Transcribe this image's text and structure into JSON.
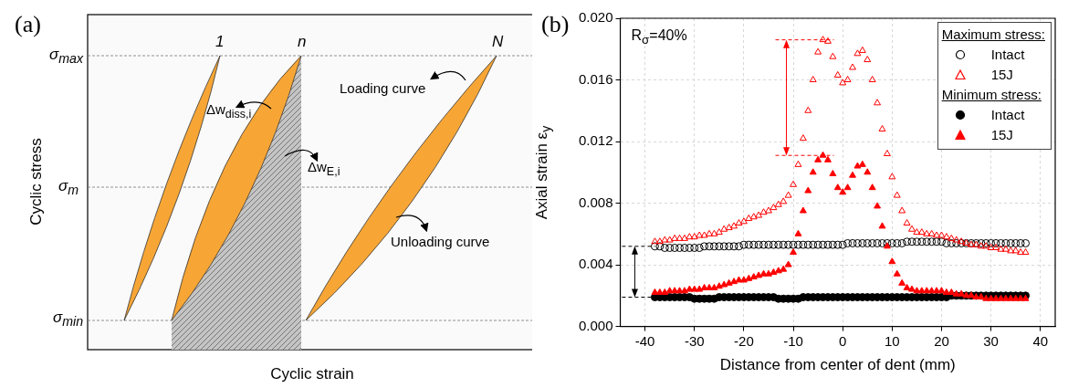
{
  "chart_data": [
    {
      "type": "other",
      "title": "(a)",
      "xlabel": "Cyclic strain",
      "ylabel": "Cyclic stress",
      "annotations": [
        "1",
        "n",
        "N",
        "σ$_{max}$",
        "σ$_{m}$",
        "σ$_{min}$",
        "Loading curve",
        "Unloading curve",
        "Δw$_{diss,i}$",
        "Δw$_{E,i}$"
      ]
    },
    {
      "type": "scatter",
      "title": "(b)",
      "xlabel": "Distance from center of dent (mm)",
      "ylabel": "Axial strain ε$_{y}$",
      "annotations": [
        "R$_{σ}$=40%",
        "Maximum stress:",
        "Minimum stress:"
      ],
      "xlim": [
        -45,
        43
      ],
      "xticks": [
        -40,
        -30,
        -20,
        -10,
        0,
        10,
        20,
        30,
        40
      ],
      "ylim": [
        0,
        0.02
      ],
      "yticks": [
        {
          "value": 0,
          "label": "0.000"
        },
        {
          "value": 0.004,
          "label": "0.004"
        },
        {
          "value": 0.008,
          "label": "0.008"
        },
        {
          "value": 0.012,
          "label": "0.012"
        },
        {
          "value": 0.016,
          "label": "0.016"
        },
        {
          "value": 0.02,
          "label": "0.020"
        }
      ],
      "grid": true,
      "legend": "top right",
      "x": [
        -38,
        -37,
        -36,
        -35,
        -34,
        -33,
        -32,
        -31,
        -30,
        -29,
        -28,
        -27,
        -26,
        -25,
        -24,
        -23,
        -22,
        -21,
        -20,
        -19,
        -18,
        -17,
        -16,
        -15,
        -14,
        -13,
        -12,
        -11,
        -10,
        -9,
        -8,
        -7,
        -6,
        -5,
        -4,
        -3,
        -2,
        -1,
        0,
        1,
        2,
        3,
        4,
        5,
        6,
        7,
        8,
        9,
        10,
        11,
        12,
        13,
        14,
        15,
        16,
        17,
        18,
        19,
        20,
        21,
        22,
        23,
        24,
        25,
        26,
        27,
        28,
        29,
        30,
        31,
        32,
        33,
        34,
        35,
        36,
        37
      ],
      "series": [
        {
          "name": "Intact",
          "color": "#000000",
          "marker": "circle",
          "values": [
            0.0052,
            0.0052,
            0.0051,
            0.0051,
            0.0051,
            0.0051,
            0.0051,
            0.0051,
            0.0051,
            0.0051,
            0.0052,
            0.0052,
            0.0052,
            0.0052,
            0.0052,
            0.0052,
            0.0052,
            0.0052,
            0.0053,
            0.0053,
            0.0053,
            0.0053,
            0.0053,
            0.0053,
            0.0053,
            0.0053,
            0.0053,
            0.0053,
            0.0053,
            0.0053,
            0.0053,
            0.0053,
            0.0053,
            0.0053,
            0.0053,
            0.0053,
            0.0053,
            0.0053,
            0.0053,
            0.0054,
            0.0054,
            0.0054,
            0.0054,
            0.0054,
            0.0054,
            0.0054,
            0.0054,
            0.0054,
            0.0054,
            0.0054,
            0.0054,
            0.0055,
            0.0055,
            0.0055,
            0.0055,
            0.0055,
            0.0055,
            0.0055,
            0.0055,
            0.0054,
            0.0054,
            0.0054,
            0.0054,
            0.0054,
            0.0054,
            0.0054,
            0.0054,
            0.0054,
            0.0054,
            0.0054,
            0.0054,
            0.0054,
            0.0054,
            0.0054,
            0.0054,
            0.0054
          ]
        },
        {
          "name": "15J",
          "color": "#ff0000",
          "marker": "triangle",
          "values": [
            0.0055,
            0.0055,
            0.0056,
            0.0056,
            0.0057,
            0.0057,
            0.0057,
            0.0058,
            0.0058,
            0.0059,
            0.0059,
            0.006,
            0.006,
            0.0061,
            0.0063,
            0.0064,
            0.0065,
            0.0067,
            0.0068,
            0.007,
            0.0071,
            0.0072,
            0.0074,
            0.0075,
            0.0077,
            0.0079,
            0.0081,
            0.0085,
            0.0092,
            0.0105,
            0.0122,
            0.014,
            0.016,
            0.0178,
            0.0186,
            0.0185,
            0.0175,
            0.0163,
            0.0158,
            0.016,
            0.0168,
            0.0177,
            0.0179,
            0.0173,
            0.016,
            0.0145,
            0.0128,
            0.0112,
            0.0097,
            0.0085,
            0.0075,
            0.0067,
            0.0063,
            0.0061,
            0.0061,
            0.006,
            0.006,
            0.0059,
            0.0059,
            0.0058,
            0.0057,
            0.0056,
            0.0055,
            0.0054,
            0.0053,
            0.0053,
            0.0052,
            0.0052,
            0.0051,
            0.0051,
            0.005,
            0.005,
            0.0049,
            0.0049,
            0.0048,
            0.0048
          ]
        },
        {
          "name": "Intact",
          "color": "#000000",
          "marker": "circle",
          "values": [
            0.0019,
            0.0019,
            0.0019,
            0.0019,
            0.0019,
            0.0019,
            0.0019,
            0.0019,
            0.0018,
            0.0018,
            0.0018,
            0.0018,
            0.0018,
            0.0019,
            0.0019,
            0.0019,
            0.0019,
            0.0019,
            0.0019,
            0.0019,
            0.0019,
            0.0019,
            0.0019,
            0.0019,
            0.0019,
            0.0018,
            0.0018,
            0.0018,
            0.0018,
            0.0018,
            0.0019,
            0.0019,
            0.0019,
            0.0019,
            0.0019,
            0.0019,
            0.0019,
            0.0019,
            0.0019,
            0.0019,
            0.0019,
            0.0019,
            0.0019,
            0.0019,
            0.0019,
            0.0019,
            0.0019,
            0.0019,
            0.0019,
            0.0019,
            0.0019,
            0.0019,
            0.0019,
            0.0019,
            0.0019,
            0.0019,
            0.0019,
            0.0019,
            0.0019,
            0.0019,
            0.002,
            0.002,
            0.002,
            0.002,
            0.002,
            0.002,
            0.002,
            0.002,
            0.002,
            0.002,
            0.002,
            0.002,
            0.002,
            0.002,
            0.002,
            0.002
          ]
        },
        {
          "name": "15J",
          "color": "#ff0000",
          "marker": "triangle",
          "values": [
            0.0022,
            0.0022,
            0.0022,
            0.0023,
            0.0023,
            0.0023,
            0.0023,
            0.0024,
            0.0024,
            0.0024,
            0.0025,
            0.0025,
            0.0025,
            0.0026,
            0.0027,
            0.0028,
            0.0029,
            0.003,
            0.003,
            0.0031,
            0.0032,
            0.0033,
            0.0034,
            0.0034,
            0.0035,
            0.0036,
            0.0037,
            0.004,
            0.0048,
            0.006,
            0.0075,
            0.0088,
            0.01,
            0.0108,
            0.0111,
            0.0108,
            0.0099,
            0.009,
            0.0087,
            0.009,
            0.0098,
            0.0104,
            0.0105,
            0.01,
            0.009,
            0.0078,
            0.0065,
            0.0052,
            0.0042,
            0.0034,
            0.0028,
            0.0025,
            0.0024,
            0.0023,
            0.0023,
            0.0023,
            0.0023,
            0.0023,
            0.0023,
            0.0022,
            0.0022,
            0.0021,
            0.0021,
            0.002,
            0.002,
            0.0019,
            0.0019,
            0.0018,
            0.0018,
            0.0018,
            0.0018,
            0.0018,
            0.0018,
            0.0018,
            0.0018,
            0.0018
          ]
        }
      ]
    }
  ]
}
